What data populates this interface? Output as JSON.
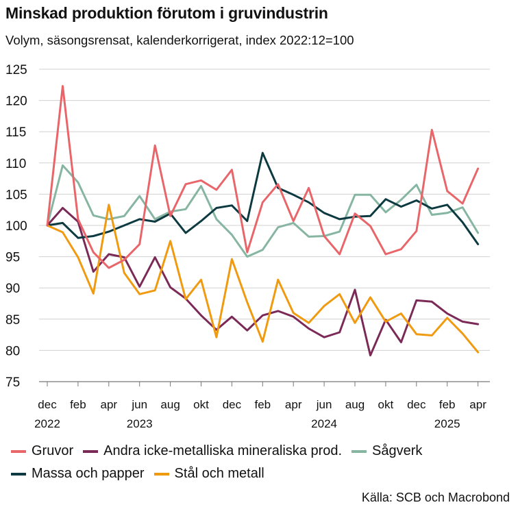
{
  "title": "Minskad produktion förutom i gruvindustrin",
  "subtitle": "Volym, säsongsrensat, kalenderkorrigerat, index 2022:12=100",
  "source": "Källa: SCB och Macrobond",
  "chart_data": {
    "type": "line",
    "title": "Minskad produktion förutom i gruvindustrin",
    "subtitle": "Volym, säsongsrensat, kalenderkorrigerat, index 2022:12=100",
    "x": [
      "2022-12",
      "2023-01",
      "2023-02",
      "2023-03",
      "2023-04",
      "2023-05",
      "2023-06",
      "2023-07",
      "2023-08",
      "2023-09",
      "2023-10",
      "2023-11",
      "2023-12",
      "2024-01",
      "2024-02",
      "2024-03",
      "2024-04",
      "2024-05",
      "2024-06",
      "2024-07",
      "2024-08",
      "2024-09",
      "2024-10",
      "2024-11",
      "2024-12",
      "2025-01",
      "2025-02",
      "2025-03",
      "2025-04"
    ],
    "x_tick_labels": [
      {
        "month": "dec",
        "year": "2022"
      },
      {
        "month": "feb",
        "year": ""
      },
      {
        "month": "apr",
        "year": ""
      },
      {
        "month": "jun",
        "year": "2023"
      },
      {
        "month": "aug",
        "year": ""
      },
      {
        "month": "okt",
        "year": ""
      },
      {
        "month": "dec",
        "year": ""
      },
      {
        "month": "feb",
        "year": ""
      },
      {
        "month": "apr",
        "year": ""
      },
      {
        "month": "jun",
        "year": "2024"
      },
      {
        "month": "aug",
        "year": ""
      },
      {
        "month": "okt",
        "year": ""
      },
      {
        "month": "dec",
        "year": ""
      },
      {
        "month": "feb",
        "year": "2025"
      },
      {
        "month": "apr",
        "year": ""
      }
    ],
    "y_ticks": [
      75,
      80,
      85,
      90,
      95,
      100,
      105,
      110,
      115,
      120,
      125
    ],
    "ylim": [
      75,
      125
    ],
    "grid": true,
    "legend_position": "bottom",
    "series": [
      {
        "name": "Gruvor",
        "color": "#e8666a",
        "values": [
          100,
          122.3,
          101.0,
          95.7,
          93.2,
          94.5,
          97.0,
          112.8,
          101.5,
          106.6,
          107.2,
          105.7,
          108.9,
          95.7,
          103.7,
          106.6,
          100.7,
          106.0,
          98.3,
          95.4,
          101.9,
          99.9,
          95.4,
          96.2,
          99.1,
          115.3,
          105.5,
          103.5,
          109.1
        ]
      },
      {
        "name": "Andra icke-metalliska mineraliska prod.",
        "color": "#7b2a57",
        "values": [
          100,
          102.8,
          100.6,
          92.6,
          95.4,
          94.9,
          90.2,
          94.9,
          90.1,
          88.3,
          85.6,
          83.3,
          85.4,
          83.2,
          85.6,
          86.3,
          85.4,
          83.5,
          82.1,
          82.9,
          89.7,
          79.2,
          84.9,
          81.3,
          88.0,
          87.8,
          85.9,
          84.6,
          84.2
        ]
      },
      {
        "name": "Sågverk",
        "color": "#86b5a2",
        "values": [
          100,
          109.6,
          106.9,
          101.6,
          101.0,
          101.5,
          104.7,
          101.0,
          102.2,
          102.6,
          106.3,
          101.0,
          98.5,
          95.0,
          96.1,
          99.7,
          100.4,
          98.2,
          98.3,
          99.0,
          104.9,
          104.9,
          102.1,
          104.1,
          106.5,
          101.7,
          102.0,
          102.9,
          98.8
        ]
      },
      {
        "name": "Massa och papper",
        "color": "#0c3a40",
        "values": [
          100,
          100.4,
          98.0,
          98.3,
          99.0,
          100.0,
          101.0,
          100.6,
          101.9,
          98.8,
          100.7,
          102.8,
          103.2,
          100.7,
          111.6,
          106.0,
          104.9,
          103.7,
          102.0,
          101.0,
          101.4,
          101.5,
          104.2,
          103.0,
          104.0,
          102.7,
          103.3,
          100.5,
          97.0
        ]
      },
      {
        "name": "Stål och metall",
        "color": "#f09a10",
        "values": [
          100,
          98.9,
          94.9,
          89.1,
          103.3,
          92.4,
          89.0,
          89.6,
          97.5,
          88.2,
          91.3,
          82.1,
          94.6,
          87.7,
          81.4,
          91.3,
          86.0,
          84.4,
          87.1,
          89.0,
          84.4,
          88.5,
          84.6,
          85.9,
          82.6,
          82.4,
          85.2,
          82.7,
          79.7
        ]
      }
    ]
  },
  "legend": {
    "row1": [
      "Gruvor",
      "Andra icke-metalliska mineraliska prod.",
      "Sågverk"
    ],
    "row2": [
      "Massa och papper",
      "Stål och metall"
    ]
  }
}
